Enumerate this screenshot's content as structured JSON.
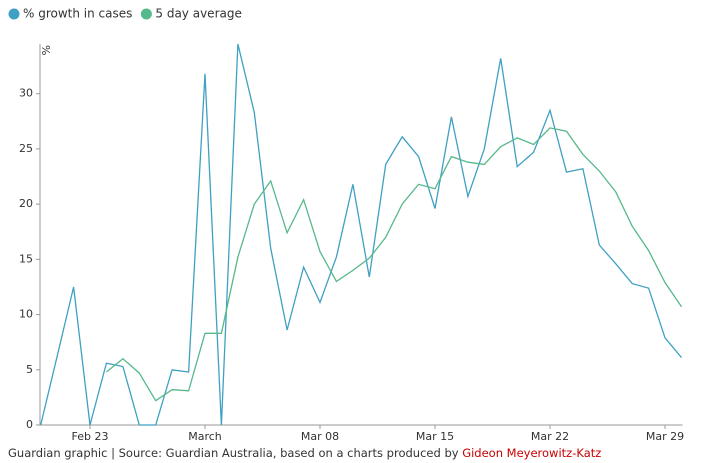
{
  "chart_data": {
    "type": "line",
    "y_label": "%",
    "categories": [
      null,
      null,
      null,
      "Feb 23",
      null,
      null,
      null,
      null,
      null,
      null,
      "March",
      null,
      null,
      null,
      null,
      null,
      null,
      "Mar 08",
      null,
      null,
      null,
      null,
      null,
      null,
      "Mar 15",
      null,
      null,
      null,
      null,
      null,
      null,
      "Mar 22",
      null,
      null,
      null,
      null,
      null,
      null,
      "Mar 29",
      null
    ],
    "series": [
      {
        "name": "% growth in cases",
        "color": "#3fa0c3",
        "values": [
          0,
          6.2,
          12.5,
          0,
          5.6,
          5.3,
          0,
          0,
          5.0,
          4.8,
          31.8,
          0,
          34.5,
          28.3,
          16.0,
          8.6,
          14.3,
          11.1,
          15.2,
          21.8,
          13.4,
          23.6,
          26.1,
          24.3,
          19.6,
          27.9,
          20.7,
          25.0,
          33.2,
          23.4,
          24.7,
          28.5,
          22.9,
          23.2,
          16.3,
          14.6,
          12.8,
          12.4,
          7.9,
          6.1
        ]
      },
      {
        "name": "5 day average",
        "color": "#56b98b",
        "values": [
          null,
          null,
          null,
          null,
          4.8,
          6.0,
          4.7,
          2.2,
          3.2,
          3.1,
          8.3,
          8.3,
          15.2,
          20.0,
          22.1,
          17.4,
          20.4,
          15.7,
          13.0,
          14.0,
          15.1,
          17.0,
          20.0,
          21.8,
          21.4,
          24.3,
          23.8,
          23.6,
          25.2,
          26.0,
          25.4,
          26.9,
          26.6,
          24.5,
          23.0,
          21.1,
          18.0,
          15.8,
          12.9,
          10.7
        ]
      }
    ],
    "ylim": [
      0,
      34.5
    ],
    "yticks": [
      0,
      5,
      10,
      15,
      20,
      25,
      30
    ],
    "grid": false,
    "legend": "top-left",
    "source": "Guardian graphic | Source: Guardian Australia, based on a charts produced by",
    "source_link": "Gideon Meyerowitz-Katz"
  }
}
